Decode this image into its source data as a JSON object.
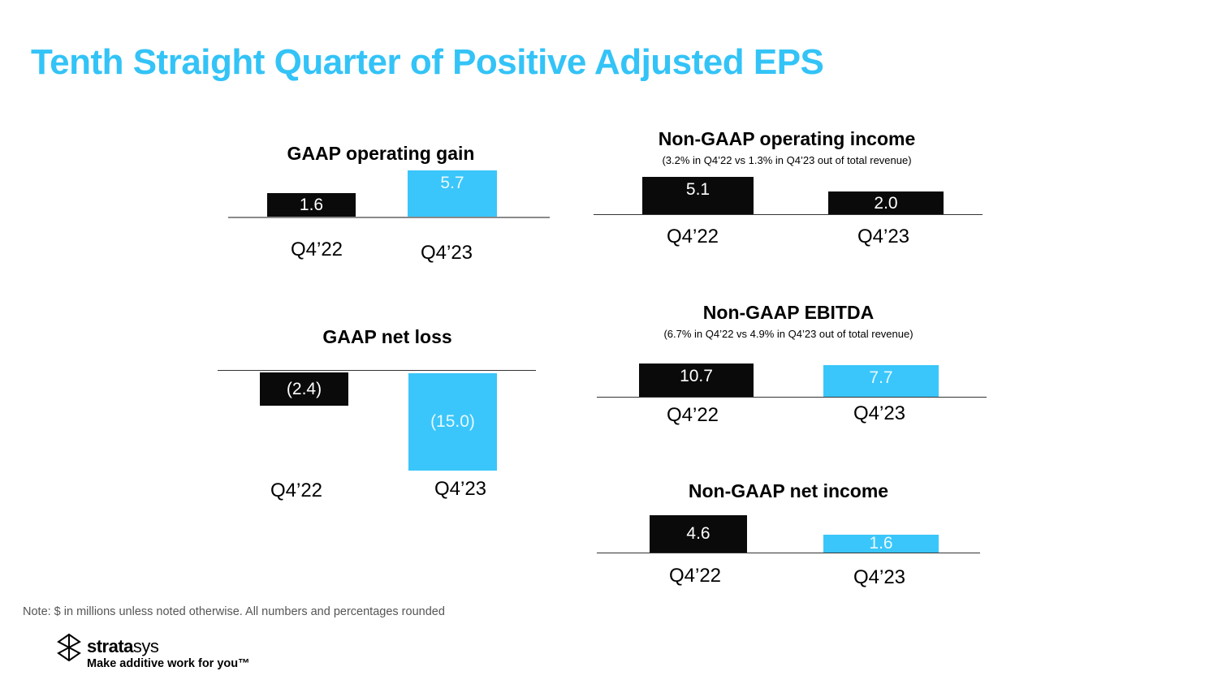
{
  "title": "Tenth Straight Quarter of Positive Adjusted EPS",
  "chart_data": [
    {
      "type": "bar",
      "title": "GAAP operating gain",
      "subtitle": "",
      "categories": [
        "Q4’22",
        "Q4’23"
      ],
      "values": [
        1.6,
        5.7
      ],
      "labels": [
        "1.6",
        "5.7"
      ],
      "colors": [
        "#0a0a0a",
        "#3AC6FA"
      ]
    },
    {
      "type": "bar",
      "title": "Non-GAAP operating income",
      "subtitle": "(3.2% in Q4’22 vs 1.3% in Q4’23 out of total revenue)",
      "categories": [
        "Q4’22",
        "Q4’23"
      ],
      "values": [
        5.1,
        2.0
      ],
      "labels": [
        "5.1",
        "2.0"
      ],
      "colors": [
        "#0a0a0a",
        "#0a0a0a"
      ]
    },
    {
      "type": "bar",
      "title": "GAAP net loss",
      "subtitle": "",
      "categories": [
        "Q4’22",
        "Q4’23"
      ],
      "values": [
        -2.4,
        -15.0
      ],
      "labels": [
        "(2.4)",
        "(15.0)"
      ],
      "colors": [
        "#0a0a0a",
        "#3AC6FA"
      ]
    },
    {
      "type": "bar",
      "title": "Non-GAAP EBITDA",
      "subtitle": "(6.7% in Q4’22 vs 4.9% in Q4’23 out of total revenue)",
      "categories": [
        "Q4’22",
        "Q4’23"
      ],
      "values": [
        10.7,
        7.7
      ],
      "labels": [
        "10.7",
        "7.7"
      ],
      "colors": [
        "#0a0a0a",
        "#3AC6FA"
      ]
    },
    {
      "type": "bar",
      "title": "Non-GAAP net income",
      "subtitle": "",
      "categories": [
        "Q4’22",
        "Q4’23"
      ],
      "values": [
        4.6,
        1.6
      ],
      "labels": [
        "4.6",
        "1.6"
      ],
      "colors": [
        "#0a0a0a",
        "#3AC6FA"
      ]
    }
  ],
  "note": "Note: $ in millions unless noted otherwise. All numbers and percentages rounded",
  "logo": {
    "brand_bold": "strata",
    "brand_light": "sys",
    "tagline": "Make additive work for you™"
  }
}
